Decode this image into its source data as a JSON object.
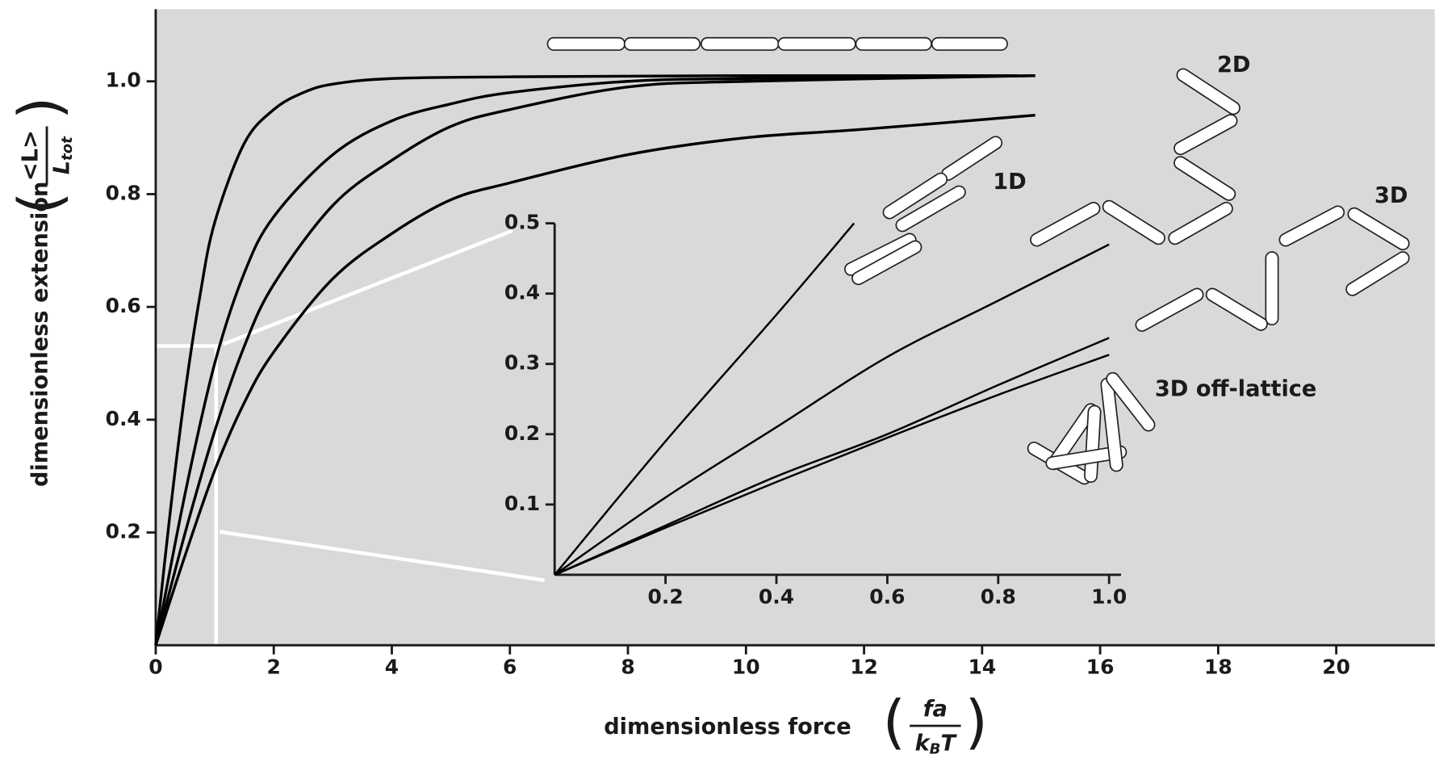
{
  "chart_data": [
    {
      "type": "line",
      "x_label": "dimensionless force",
      "x_formula": {
        "numerator": "fa",
        "denominator": "k",
        "denominator_sub": "B",
        "denominator_tail": "T"
      },
      "y_label": "dimensionless extension",
      "y_formula": {
        "numerator": "<L>",
        "denominator": "L",
        "denominator_sub": "tot"
      },
      "xlim": [
        0,
        21.67
      ],
      "ylim": [
        0,
        1.128
      ],
      "xticks": [
        0,
        2,
        4,
        6,
        8,
        10,
        12,
        14,
        16,
        18,
        20
      ],
      "yticks": [
        0.2,
        0.4,
        0.6,
        0.8,
        {
          "value": 1,
          "label": "1.0"
        }
      ],
      "series": [
        {
          "name": "1D",
          "color": "#000000",
          "x": [
            0,
            0.25,
            0.5,
            0.75,
            1,
            1.5,
            2,
            2.5,
            3,
            4,
            6,
            10,
            14.6
          ],
          "values": [
            0,
            0.24,
            0.45,
            0.62,
            0.75,
            0.89,
            0.95,
            0.98,
            0.995,
            1.005,
            1.008,
            1.01,
            1.01
          ]
        },
        {
          "name": "2D",
          "color": "#000000",
          "x": [
            0,
            0.5,
            1,
            1.5,
            2,
            3,
            4,
            5,
            6,
            8,
            10,
            14.9
          ],
          "values": [
            0,
            0.27,
            0.5,
            0.66,
            0.76,
            0.87,
            0.93,
            0.96,
            0.98,
            1.0,
            1.005,
            1.01
          ]
        },
        {
          "name": "3D",
          "color": "#000000",
          "x": [
            0,
            0.5,
            1,
            1.5,
            2,
            3,
            4,
            5,
            6,
            8,
            10,
            14.9
          ],
          "values": [
            0,
            0.2,
            0.38,
            0.53,
            0.64,
            0.78,
            0.86,
            0.92,
            0.95,
            0.99,
            1.0,
            1.01
          ]
        },
        {
          "name": "3D off-lattice",
          "color": "#000000",
          "x": [
            0,
            0.5,
            1,
            1.5,
            2,
            3,
            4,
            5,
            6,
            8,
            10,
            12,
            14.9
          ],
          "values": [
            0,
            0.16,
            0.31,
            0.43,
            0.52,
            0.65,
            0.73,
            0.79,
            0.82,
            0.87,
            0.9,
            0.915,
            0.94
          ]
        }
      ]
    },
    {
      "type": "line",
      "xlim": [
        0,
        1
      ],
      "ylim": [
        0,
        0.5
      ],
      "xticks": [
        0.2,
        0.4,
        0.6,
        0.8,
        {
          "value": 1,
          "label": "1.0"
        }
      ],
      "yticks": [
        0.1,
        0.2,
        0.3,
        0.4,
        0.5
      ],
      "series": [
        {
          "color": "#000000",
          "x": [
            0,
            0.2,
            0.4,
            0.54
          ],
          "values": [
            0,
            0.19,
            0.37,
            0.5
          ]
        },
        {
          "color": "#000000",
          "x": [
            0,
            0.2,
            0.4,
            0.6,
            0.8,
            1
          ],
          "values": [
            0,
            0.11,
            0.21,
            0.31,
            0.39,
            0.47
          ]
        },
        {
          "color": "#000000",
          "x": [
            0,
            0.2,
            0.4,
            0.6,
            0.8,
            1
          ],
          "values": [
            0,
            0.07,
            0.14,
            0.2,
            0.27,
            0.337
          ]
        },
        {
          "color": "#000000",
          "x": [
            0,
            0.2,
            0.4,
            0.6,
            0.8,
            1
          ],
          "values": [
            0,
            0.067,
            0.132,
            0.195,
            0.256,
            0.313
          ]
        }
      ]
    }
  ]
}
